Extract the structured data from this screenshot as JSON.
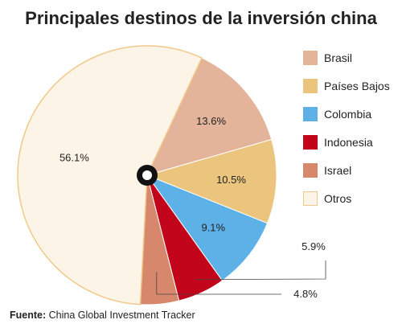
{
  "source": {
    "label": "Fuente:",
    "text": " China Global Investment Tracker"
  },
  "chart_data": {
    "type": "pie",
    "title": "Principales destinos de la inversión china",
    "slices": [
      {
        "name": "Brasil",
        "value": 13.6,
        "label": "13.6%",
        "color": "#e3b49a"
      },
      {
        "name": "Países Bajos",
        "value": 10.5,
        "label": "10.5%",
        "color": "#ebc57e"
      },
      {
        "name": "Colombia",
        "value": 9.1,
        "label": "9.1%",
        "color": "#5db1e6"
      },
      {
        "name": "Indonesia",
        "value": 5.9,
        "label": "5.9%",
        "color": "#c2051a"
      },
      {
        "name": "Israel",
        "value": 4.8,
        "label": "4.8%",
        "color": "#d7876b"
      },
      {
        "name": "Otros",
        "value": 56.1,
        "label": "56.1%",
        "color": "#fdf4e8"
      }
    ],
    "start_angle_deg": 25,
    "direction": "clockwise",
    "legend_position": "right",
    "center_marker": "black ring at center"
  }
}
